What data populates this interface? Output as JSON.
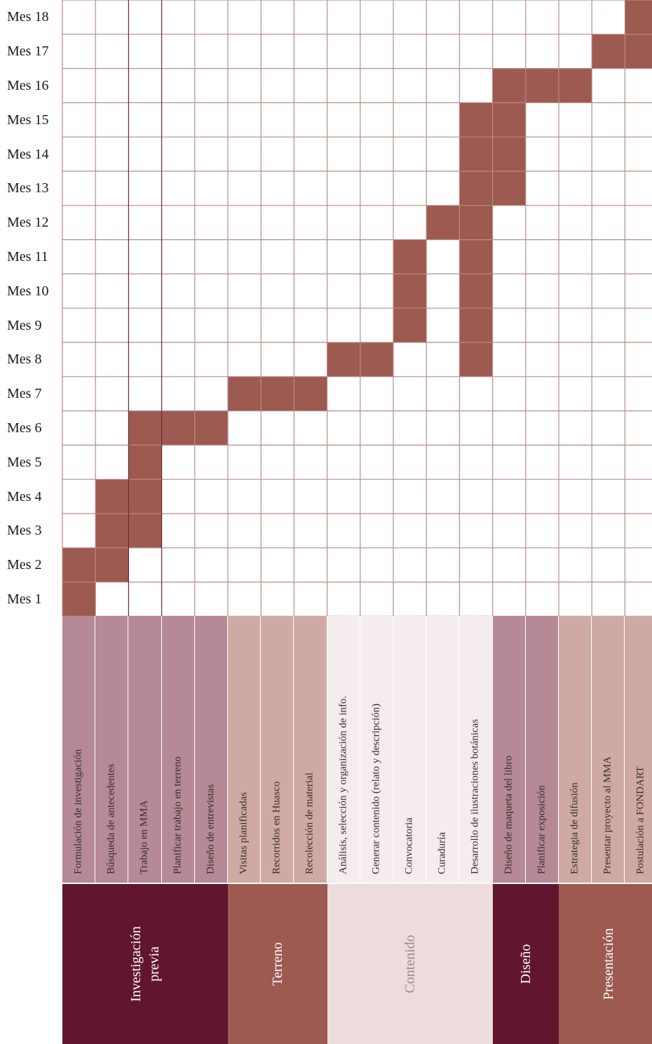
{
  "months": [
    "Mes 1",
    "Mes 2",
    "Mes 3",
    "Mes 4",
    "Mes 5",
    "Mes 6",
    "Mes 7",
    "Mes 8",
    "Mes 9",
    "Mes 10",
    "Mes 11",
    "Mes 12",
    "Mes 13",
    "Mes 14",
    "Mes 15",
    "Mes 16",
    "Mes 17",
    "Mes 18"
  ],
  "tasks": [
    {
      "label": "Formulación de investigación",
      "months": [
        1,
        2
      ],
      "category": 0
    },
    {
      "label": "Búsqueda de antecedentes",
      "months": [
        2,
        4
      ],
      "category": 0
    },
    {
      "label": "Trabajo en MMA",
      "months": [
        3,
        6
      ],
      "category": 0
    },
    {
      "label": "Planificar trabajo en terreno",
      "months": [
        6,
        6
      ],
      "category": 0
    },
    {
      "label": "Diseño de entrevistas",
      "months": [
        6,
        6
      ],
      "category": 0
    },
    {
      "label": "Visitas planificadas",
      "months": [
        7,
        7
      ],
      "category": 1
    },
    {
      "label": "Recorridos en Huasco",
      "months": [
        7,
        7
      ],
      "category": 1
    },
    {
      "label": "Recolección de material",
      "months": [
        7,
        7
      ],
      "category": 1
    },
    {
      "label": "Análisis, selección y organización de info.",
      "months": [
        8,
        8
      ],
      "category": 2
    },
    {
      "label": "Generar contenido (relato y descripción)",
      "months": [
        8,
        8
      ],
      "category": 2
    },
    {
      "label": "Convocatoria",
      "months": [
        9,
        11
      ],
      "category": 2
    },
    {
      "label": "Curaduría",
      "months": [
        12,
        12
      ],
      "category": 2
    },
    {
      "label": "Desarrollo de ilustraciones botánicas",
      "months": [
        8,
        15
      ],
      "category": 2
    },
    {
      "label": "Diseño de maqueta del libro",
      "months": [
        13,
        16
      ],
      "category": 3
    },
    {
      "label": "Planificar exposición",
      "months": [
        16,
        16
      ],
      "category": 3
    },
    {
      "label": "Estrategia de difusión",
      "months": [
        16,
        16
      ],
      "category": 4
    },
    {
      "label": "Presentar proyecto al MMA",
      "months": [
        17,
        17
      ],
      "category": 4
    },
    {
      "label": "Postulación a FONDART",
      "months": [
        17,
        18
      ],
      "category": 4
    }
  ],
  "categories": [
    {
      "label": "Investigación\nprevia",
      "span": [
        0,
        4
      ],
      "color": "#62152e",
      "task_color": "#b58995",
      "text_color": "#ffffff"
    },
    {
      "label": "Terreno",
      "span": [
        5,
        7
      ],
      "color": "#9c5a50",
      "task_color": "#cfaaa4",
      "text_color": "#ffffff"
    },
    {
      "label": "Contenido",
      "span": [
        8,
        12
      ],
      "color": "#ecdcdc",
      "task_color": "#f5eded",
      "text_color": "#9a8a8a"
    },
    {
      "label": "Diseño",
      "span": [
        13,
        14
      ],
      "color": "#62152e",
      "task_color": "#b58995",
      "text_color": "#ffffff"
    },
    {
      "label": "Presentación",
      "span": [
        15,
        17
      ],
      "color": "#9c5a50",
      "task_color": "#cfaaa4",
      "text_color": "#ffffff"
    }
  ],
  "colors": {
    "bar": "#9c5a50",
    "grid": "#b98c88",
    "grid_dark": "#6a2a3a"
  }
}
